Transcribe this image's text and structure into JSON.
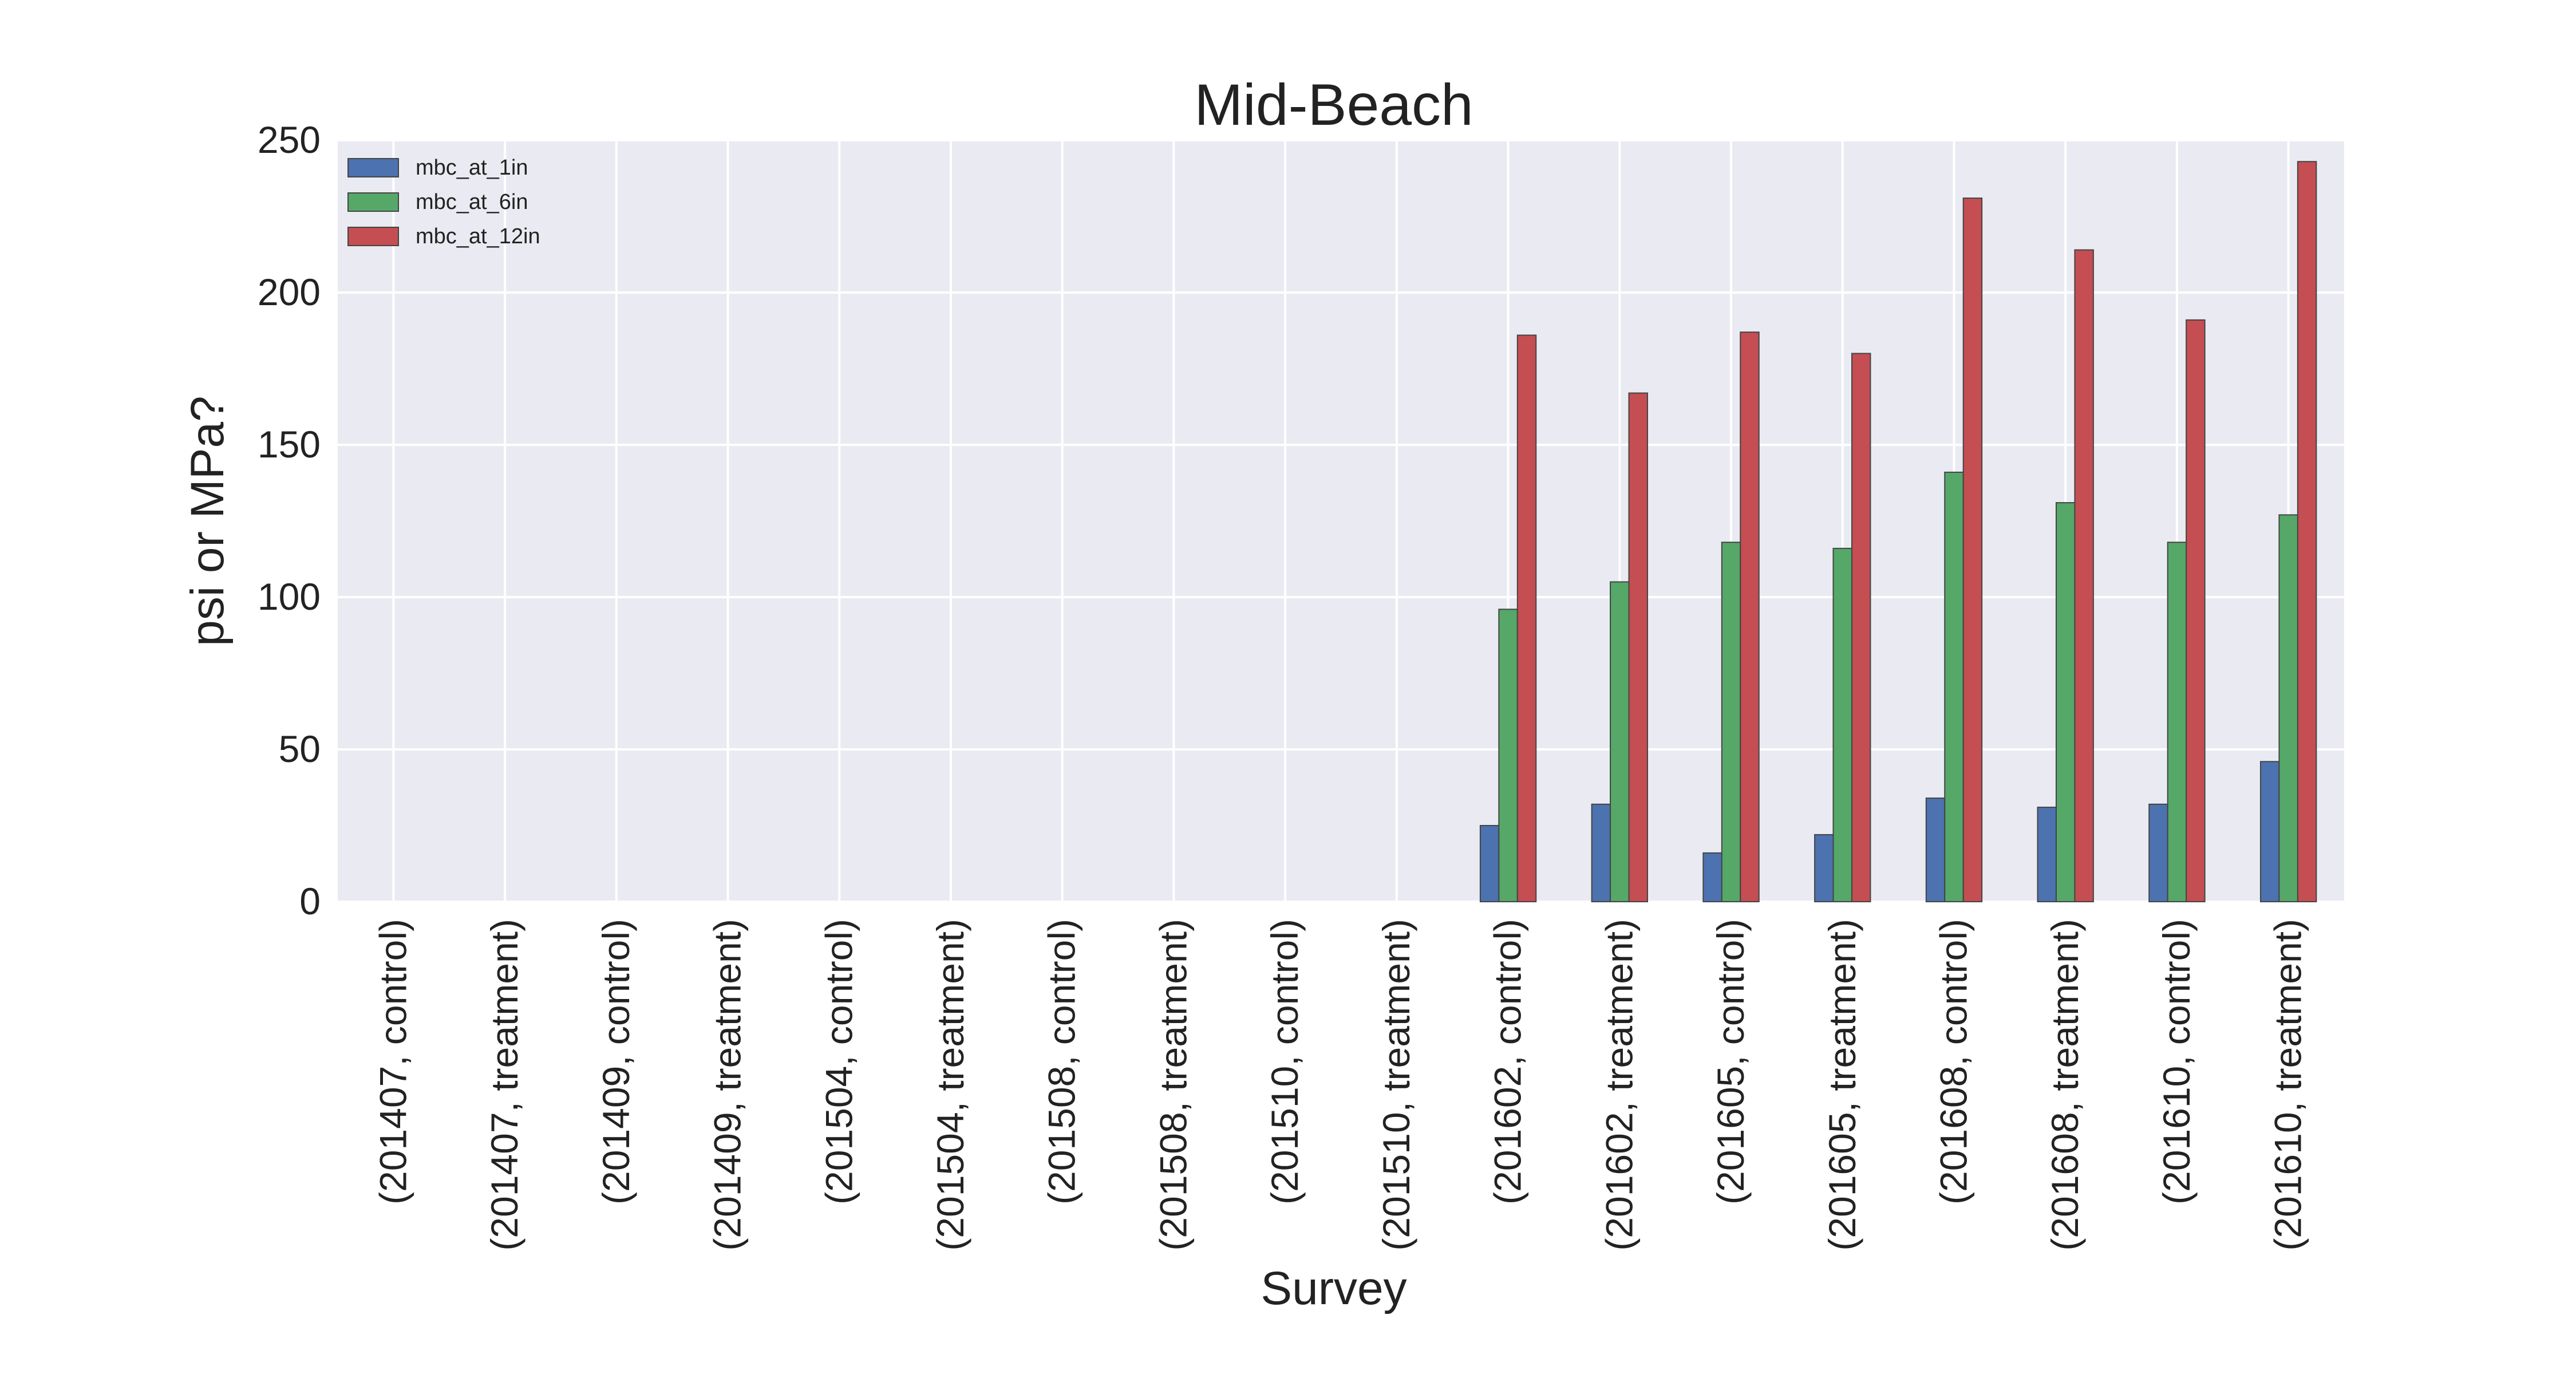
{
  "chart_data": {
    "type": "bar",
    "title": "Mid-Beach",
    "xlabel": "Survey",
    "ylabel": "psi or MPa?",
    "ylim": [
      0,
      250
    ],
    "yticks": [
      0,
      50,
      100,
      150,
      200,
      250
    ],
    "grid": true,
    "legend_position": "top-left",
    "categories": [
      "(201407, control)",
      "(201407, treatment)",
      "(201409, control)",
      "(201409, treatment)",
      "(201504, control)",
      "(201504, treatment)",
      "(201508, control)",
      "(201508, treatment)",
      "(201510, control)",
      "(201510, treatment)",
      "(201602, control)",
      "(201602, treatment)",
      "(201605, control)",
      "(201605, treatment)",
      "(201608, control)",
      "(201608, treatment)",
      "(201610, control)",
      "(201610, treatment)"
    ],
    "series": [
      {
        "name": "mbc_at_1in",
        "color": "#4C72B0",
        "values": [
          0,
          0,
          0,
          0,
          0,
          0,
          0,
          0,
          0,
          0,
          25,
          32,
          16,
          22,
          34,
          31,
          32,
          46
        ]
      },
      {
        "name": "mbc_at_6in",
        "color": "#55A868",
        "values": [
          0,
          0,
          0,
          0,
          0,
          0,
          0,
          0,
          0,
          0,
          96,
          105,
          118,
          116,
          141,
          131,
          118,
          127
        ]
      },
      {
        "name": "mbc_at_12in",
        "color": "#C44E52",
        "values": [
          0,
          0,
          0,
          0,
          0,
          0,
          0,
          0,
          0,
          0,
          186,
          167,
          187,
          180,
          231,
          214,
          191,
          243
        ]
      }
    ],
    "plot_background": "#EAEAF2"
  }
}
